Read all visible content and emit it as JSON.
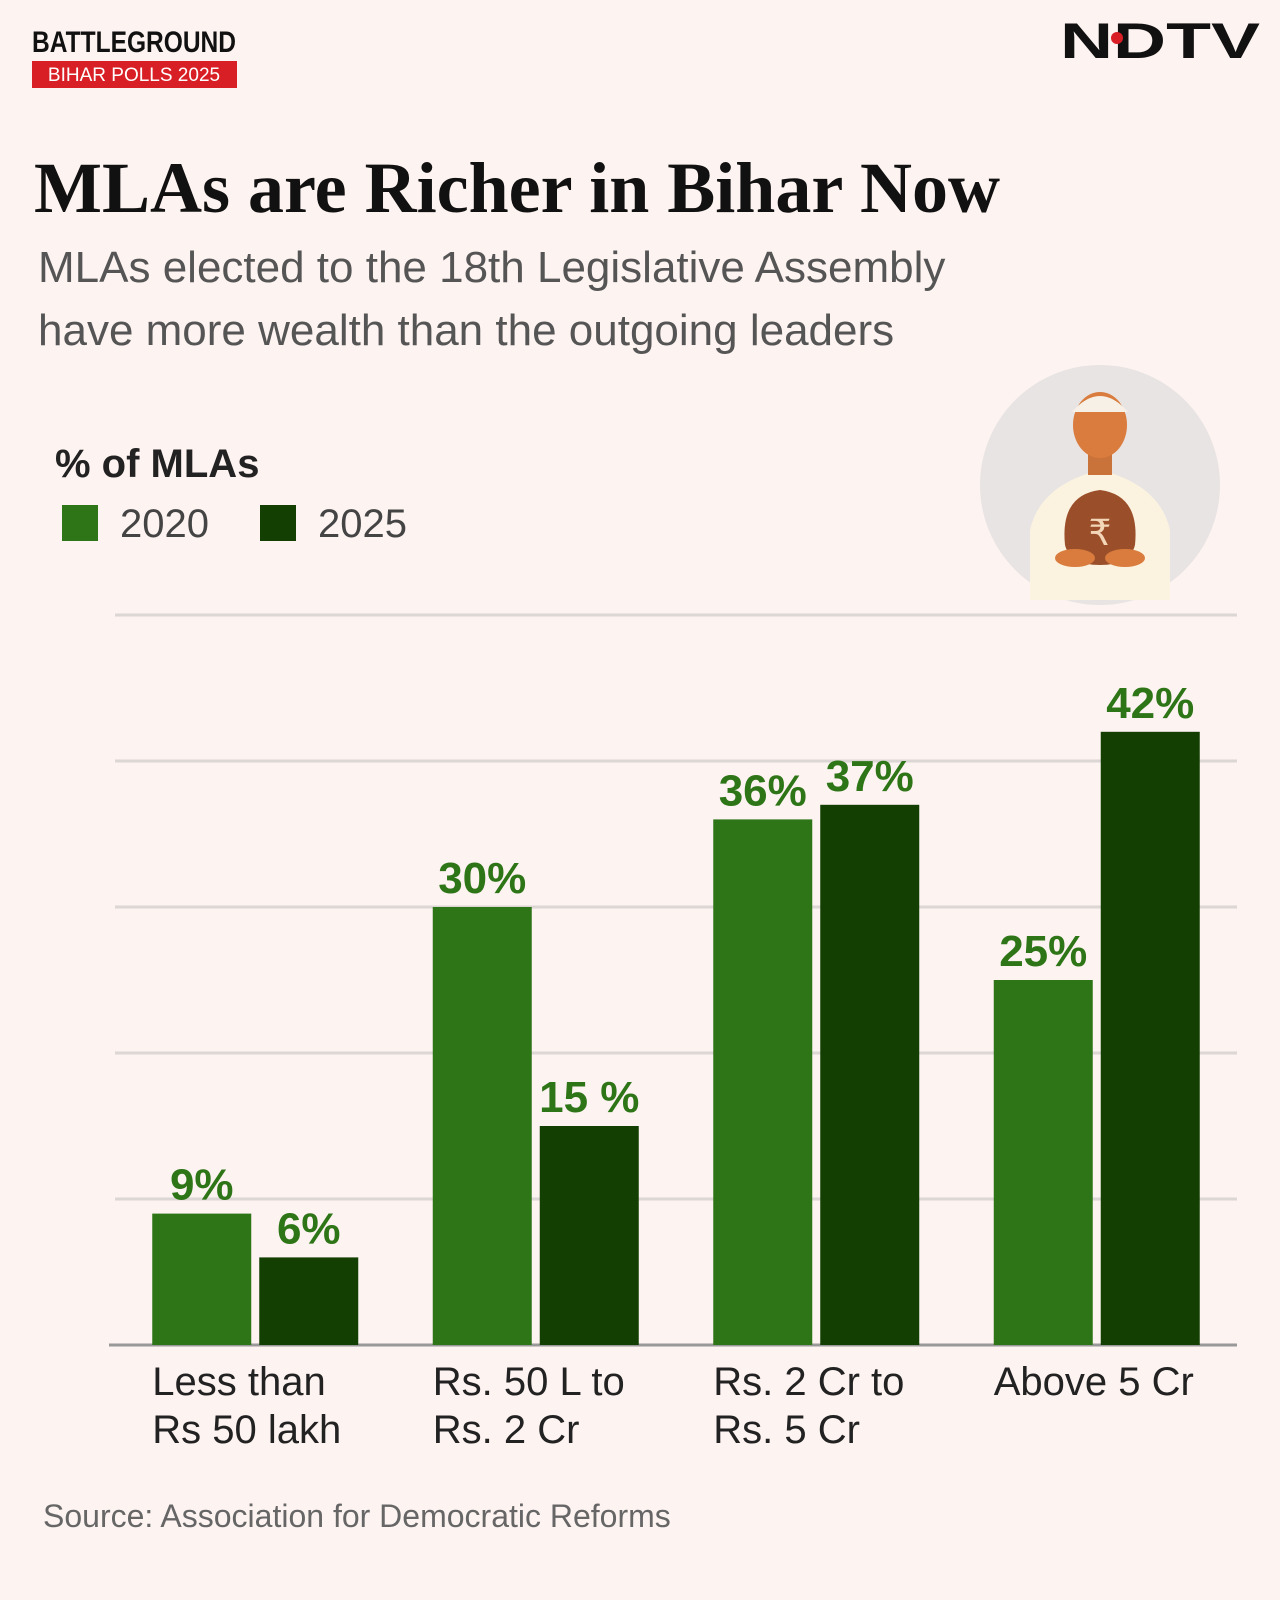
{
  "header": {
    "brand": "BATTLEGROUND",
    "badge": "BIHAR POLLS 2025",
    "logo": "NDTV"
  },
  "chart_data": {
    "type": "bar",
    "title": "MLAs are Richer in Bihar Now",
    "subtitle": [
      "MLAs elected to the 18th Legislative Assembly",
      "have more wealth than the outgoing leaders"
    ],
    "y_label": "% of MLAs",
    "categories": [
      [
        "Less than",
        "Rs 50 lakh"
      ],
      [
        "Rs. 50 L to",
        "Rs. 2 Cr"
      ],
      [
        "Rs. 2 Cr to",
        "Rs. 5 Cr"
      ],
      [
        "Above 5 Cr"
      ]
    ],
    "series": [
      {
        "name": "2020",
        "color": "#2e7517",
        "values": [
          9,
          30,
          36,
          25
        ],
        "value_labels": [
          "9%",
          "30%",
          "36%",
          "25%"
        ]
      },
      {
        "name": "2025",
        "color": "#133f03",
        "values": [
          6,
          15,
          37,
          42
        ],
        "value_labels": [
          "6%",
          "15 %",
          "37%",
          "42%"
        ]
      }
    ],
    "ylim": [
      0,
      50
    ],
    "yticks": [
      0,
      10,
      20,
      30,
      40,
      50
    ],
    "grid": true,
    "source": "Source: Association for Democratic Reforms"
  }
}
